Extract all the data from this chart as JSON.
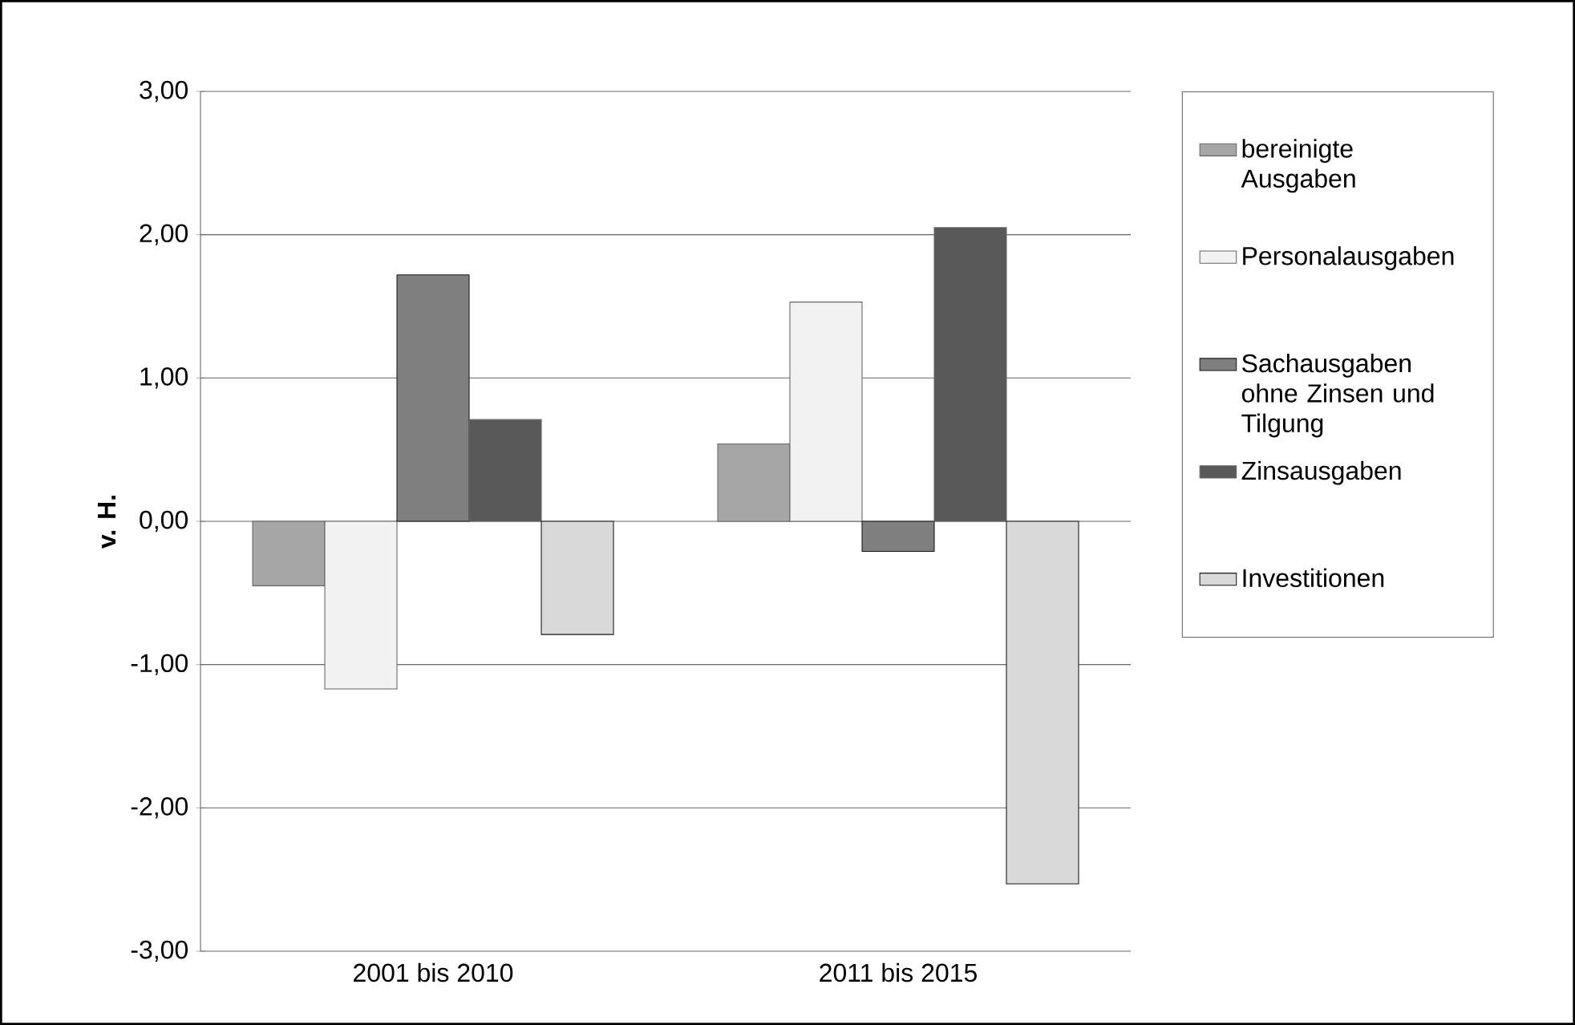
{
  "chart_data": {
    "type": "bar",
    "ylabel": "v. H.",
    "categories": [
      "2001 bis 2010",
      "2011 bis 2015"
    ],
    "series": [
      {
        "name": "bereinigte Ausgaben",
        "color": "#a6a6a6",
        "values": [
          -0.45,
          0.54
        ]
      },
      {
        "name": "Personalausgaben",
        "color": "#f2f2f2",
        "values": [
          -1.17,
          1.53
        ]
      },
      {
        "name": "Sachausgaben ohne Zinsen und Tilgung",
        "color": "#7f7f7f",
        "values": [
          1.72,
          -0.21
        ]
      },
      {
        "name": "Zinsausgaben",
        "color": "#595959",
        "values": [
          0.71,
          2.05
        ]
      },
      {
        "name": "Investitionen",
        "color": "#d9d9d9",
        "values": [
          -0.79,
          -2.53
        ]
      }
    ],
    "ylim": [
      -3,
      3
    ],
    "yticks": [
      {
        "value": -3,
        "label": "-3,00"
      },
      {
        "value": -2,
        "label": "-2,00"
      },
      {
        "value": -1,
        "label": "-1,00"
      },
      {
        "value": 0,
        "label": "0,00"
      },
      {
        "value": 1,
        "label": "1,00"
      },
      {
        "value": 2,
        "label": "2,00"
      },
      {
        "value": 3,
        "label": "3,00"
      }
    ],
    "grid": "y",
    "legend": "right"
  }
}
